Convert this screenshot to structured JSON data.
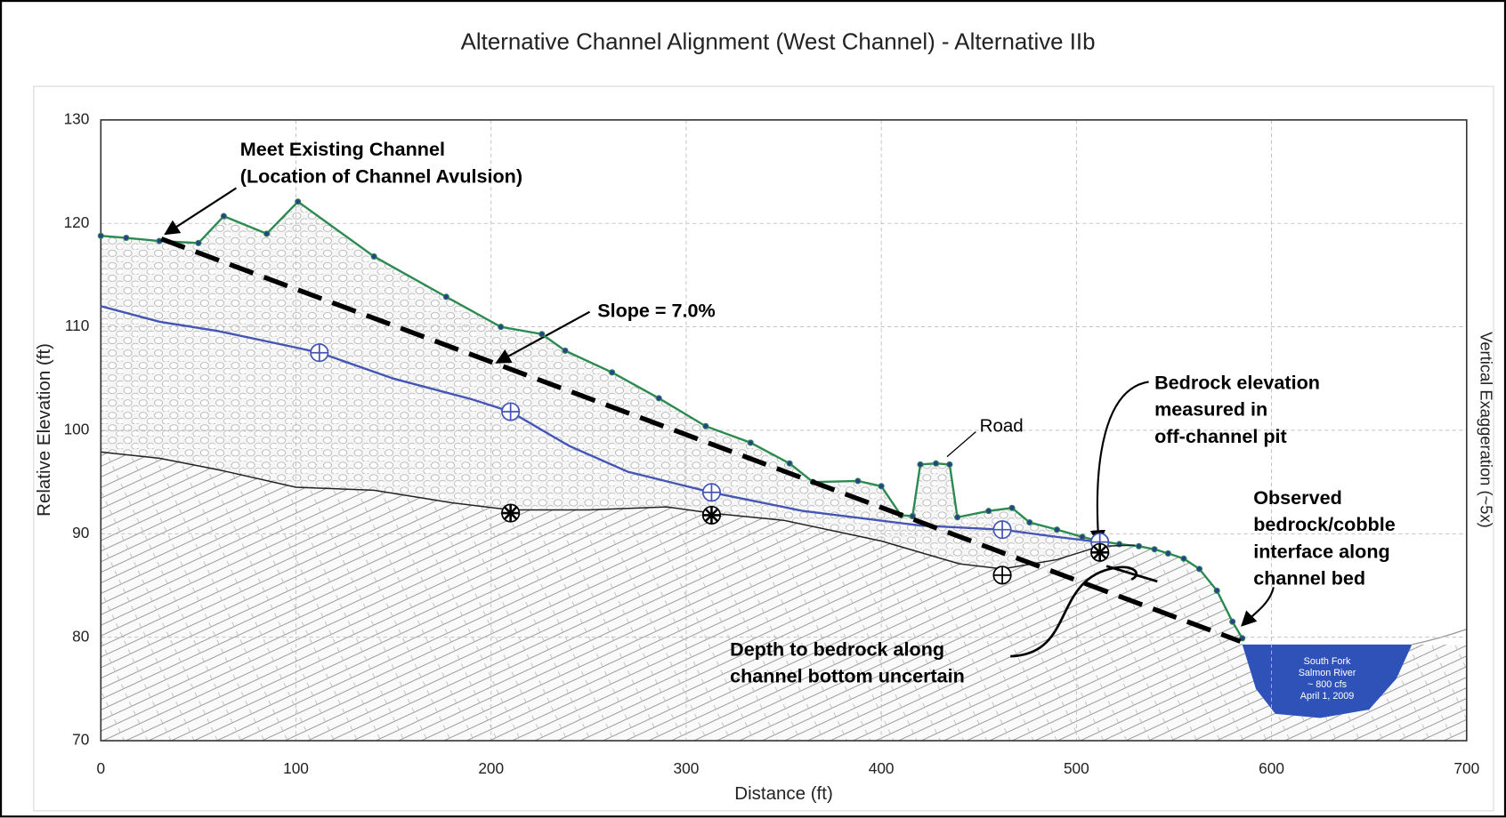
{
  "chart_data": {
    "type": "line",
    "title": "Alternative Channel Alignment (West Channel) - Alternative IIb",
    "xlabel": "Distance (ft)",
    "ylabel": "Relative Elevation (ft)",
    "y2label": "Vertical Exaggeration (~5x)",
    "xlim": [
      0,
      700
    ],
    "ylim": [
      70,
      130
    ],
    "xticks": [
      0,
      100,
      200,
      300,
      400,
      500,
      600,
      700
    ],
    "yticks": [
      70,
      80,
      90,
      100,
      110,
      120,
      130
    ],
    "grid": true,
    "series": [
      {
        "color": "#2a8a50",
        "marker": true,
        "x": [
          0,
          13,
          30,
          50,
          63,
          85,
          101,
          140,
          177,
          205,
          226,
          238,
          262,
          286,
          310,
          333,
          353,
          365,
          388,
          400,
          410,
          416,
          420,
          428,
          435,
          439,
          455,
          467,
          476,
          490,
          503,
          512,
          522,
          532,
          540,
          547,
          555,
          563,
          572,
          580,
          585
        ],
        "values": [
          118.8,
          118.6,
          118.3,
          118.1,
          120.7,
          119,
          122.1,
          116.8,
          112.9,
          110,
          109.3,
          107.7,
          105.6,
          103.1,
          100.4,
          98.8,
          96.8,
          95,
          95.1,
          94.6,
          91.8,
          91.7,
          96.7,
          96.8,
          96.7,
          91.6,
          92.2,
          92.5,
          91.1,
          90.4,
          89.7,
          89.3,
          89.0,
          88.8,
          88.5,
          88.1,
          87.6,
          86.6,
          84.5,
          81.5,
          79.9
        ]
      },
      {
        "color": "#4455b5",
        "x": [
          0,
          30,
          60,
          100,
          112,
          150,
          190,
          210,
          240,
          270,
          313,
          360,
          420,
          462,
          490,
          512
        ],
        "values": [
          112,
          110.5,
          109.6,
          108,
          107.5,
          105,
          103,
          101.8,
          98.5,
          96,
          94,
          92.2,
          90.8,
          90.4,
          89.7,
          89.2
        ]
      },
      {
        "color": "#222222",
        "x": [
          0,
          30,
          60,
          100,
          140,
          180,
          210,
          250,
          290,
          313,
          350,
          400,
          440,
          462,
          490,
          512,
          530
        ],
        "values": [
          97.9,
          97.3,
          96.2,
          94.5,
          94.2,
          93,
          92.3,
          92.3,
          92.6,
          92,
          91.3,
          89.3,
          87.1,
          86.6,
          87.5,
          88.8,
          88.9
        ]
      },
      {
        "color": "#000000",
        "dash": true,
        "x": [
          31,
          584
        ],
        "values": [
          118.5,
          79.6
        ]
      }
    ],
    "points": [
      {
        "x": 112,
        "y": 107.5,
        "color": "#4455b5",
        "symbol": "plus"
      },
      {
        "x": 210,
        "y": 101.8,
        "color": "#4455b5",
        "symbol": "plus"
      },
      {
        "x": 313,
        "y": 94,
        "color": "#4455b5",
        "symbol": "plus"
      },
      {
        "x": 462,
        "y": 90.4,
        "color": "#4455b5",
        "symbol": "plus"
      },
      {
        "x": 512,
        "y": 89.2,
        "color": "#4455b5",
        "symbol": "plus"
      },
      {
        "x": 210,
        "y": 92,
        "color": "#000000",
        "symbol": "star"
      },
      {
        "x": 313,
        "y": 91.8,
        "color": "#000000",
        "symbol": "star"
      },
      {
        "x": 512,
        "y": 88.2,
        "color": "#000000",
        "symbol": "star"
      },
      {
        "x": 462,
        "y": 86,
        "color": "#000000",
        "symbol": "plus"
      }
    ],
    "river": {
      "color": "#2f52b8",
      "x": [
        585,
        592,
        602,
        625,
        650,
        664,
        672
      ],
      "values": [
        79.3,
        75,
        72.6,
        72.2,
        73,
        76,
        79.3
      ],
      "labels": [
        "South Fork",
        "Salmon River",
        "~ 800 cfs",
        "April 1, 2009"
      ]
    },
    "annotations": [
      {
        "lines": [
          "Meet Existing Channel",
          "(Location of Channel Avulsion)"
        ],
        "bold": true
      },
      {
        "lines": [
          "Slope = 7.0%"
        ],
        "bold": true
      },
      {
        "lines": [
          "Road"
        ],
        "bold": false
      },
      {
        "lines": [
          "Bedrock elevation",
          "measured in",
          "off-channel pit"
        ],
        "bold": true
      },
      {
        "lines": [
          "Observed",
          "bedrock/cobble",
          "interface along",
          "channel bed"
        ],
        "bold": true
      },
      {
        "lines": [
          "Depth to bedrock along",
          "channel bottom uncertain"
        ],
        "bold": true
      }
    ]
  }
}
